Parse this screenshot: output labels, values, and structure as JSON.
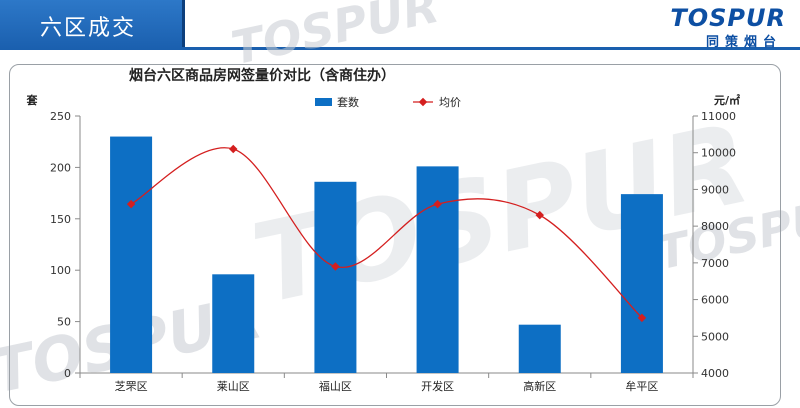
{
  "header": {
    "title": "六区成交"
  },
  "logo": {
    "main": "TOSPUR",
    "sub": "同策烟台",
    "watermark": "TOSPUR"
  },
  "colors": {
    "bar": "#0d6fc4",
    "line": "#d41f1f",
    "header": "#1a5fae"
  },
  "chart_data": {
    "type": "bar",
    "title": "烟台六区商品房网签量价对比（含商住办）",
    "categories": [
      "芝罘区",
      "莱山区",
      "福山区",
      "开发区",
      "高新区",
      "牟平区"
    ],
    "series": [
      {
        "name": "套数",
        "type": "bar",
        "axis": "left",
        "values": [
          230,
          96,
          186,
          201,
          47,
          174
        ]
      },
      {
        "name": "均价",
        "type": "line",
        "axis": "right",
        "values": [
          8600,
          10100,
          6900,
          8600,
          8300,
          5500
        ]
      }
    ],
    "ylabel": "套",
    "y2label": "元/㎡",
    "ylim": [
      0,
      250
    ],
    "y2lim": [
      4000,
      11000
    ],
    "yticks": [
      0,
      50,
      100,
      150,
      200,
      250
    ],
    "y2ticks": [
      4000,
      5000,
      6000,
      7000,
      8000,
      9000,
      10000,
      11000
    ],
    "legend": "top-center",
    "grid": false
  }
}
